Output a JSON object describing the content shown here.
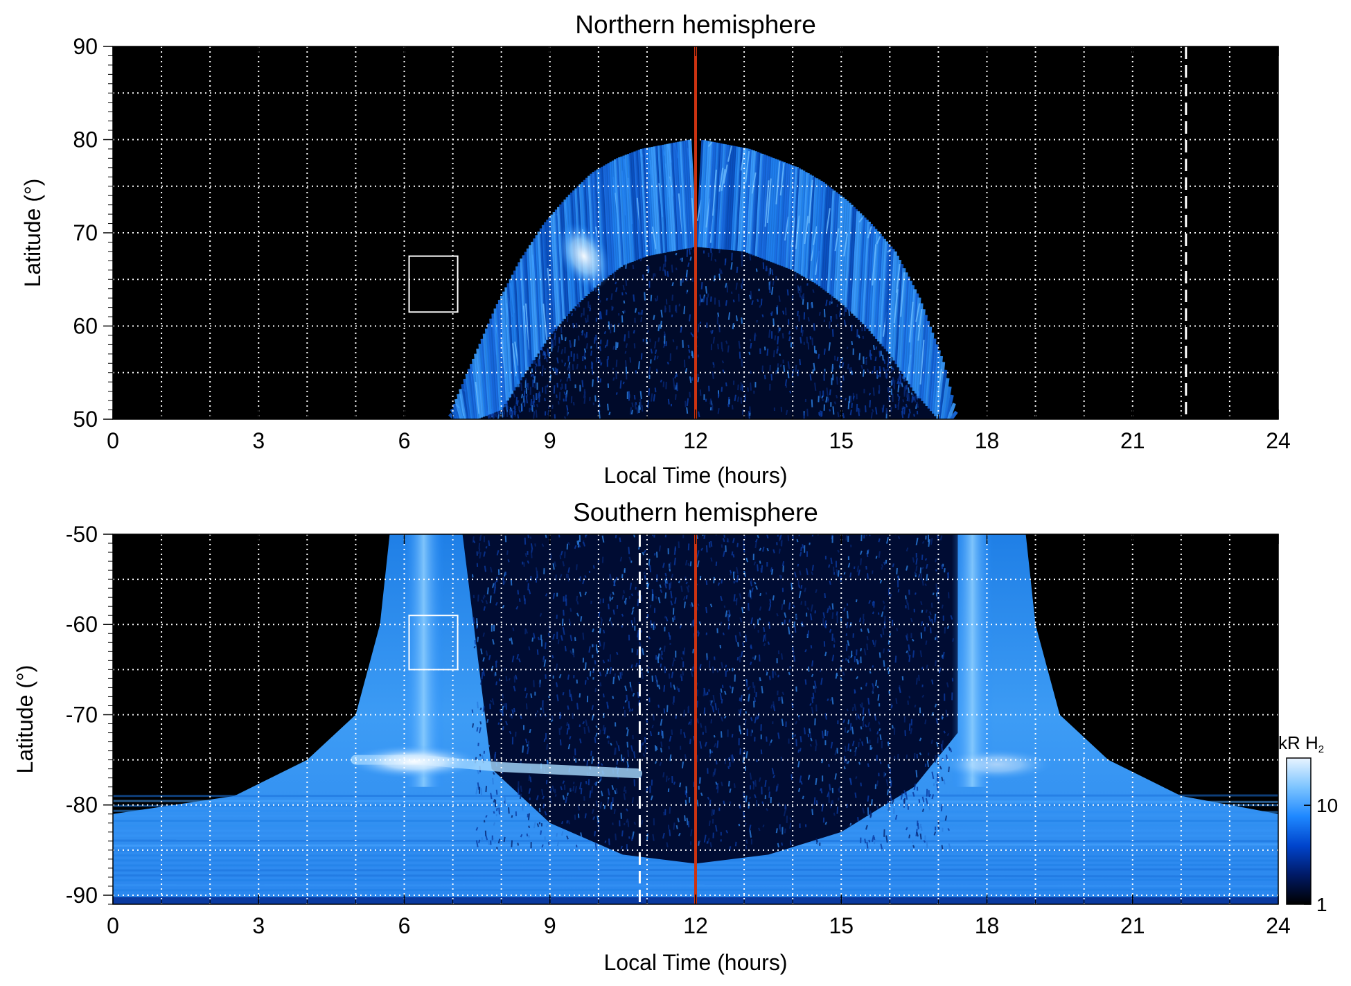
{
  "chart_data": [
    {
      "type": "heatmap",
      "title": "Northern hemisphere",
      "xlabel": "Local Time (hours)",
      "ylabel": "Latitude (°)",
      "xlim": [
        0,
        24
      ],
      "ylim": [
        50,
        90
      ],
      "x_ticks": [
        0,
        3,
        6,
        9,
        12,
        15,
        18,
        21,
        24
      ],
      "x_tick_labels": [
        "0",
        "3",
        "6",
        "9",
        "12",
        "15",
        "18",
        "21",
        "24"
      ],
      "y_ticks": [
        50,
        60,
        70,
        80,
        90
      ],
      "y_tick_labels": [
        "50",
        "60",
        "70",
        "80",
        "90"
      ],
      "grid": true,
      "grid_x_step_hours": 1,
      "grid_y_step_deg": 5,
      "background_color": "#000000",
      "noon_line": {
        "x": 12,
        "color": "#cc3311"
      },
      "dashed_line": {
        "x": 22.1,
        "color": "#ffffff"
      },
      "highlight_box": {
        "x": [
          6.1,
          7.1
        ],
        "y": [
          61.5,
          67.5
        ],
        "color": "#ffffff"
      },
      "auroral_oval": {
        "description_values": "emission band between inner and outer latitude boundaries",
        "points": [
          {
            "lt": 7.0,
            "lat_outer": 50.0,
            "lat_inner": 50.0
          },
          {
            "lt": 7.5,
            "lat_outer": 56.0,
            "lat_inner": 50.0
          },
          {
            "lt": 8.0,
            "lat_outer": 62.0,
            "lat_inner": 51.0
          },
          {
            "lt": 8.5,
            "lat_outer": 67.0,
            "lat_inner": 55.0
          },
          {
            "lt": 9.0,
            "lat_outer": 71.0,
            "lat_inner": 59.0
          },
          {
            "lt": 9.5,
            "lat_outer": 74.0,
            "lat_inner": 62.0
          },
          {
            "lt": 10.0,
            "lat_outer": 76.5,
            "lat_inner": 64.5
          },
          {
            "lt": 10.5,
            "lat_outer": 78.0,
            "lat_inner": 66.5
          },
          {
            "lt": 11.0,
            "lat_outer": 79.0,
            "lat_inner": 67.5
          },
          {
            "lt": 12.0,
            "lat_outer": 80.0,
            "lat_inner": 68.5
          },
          {
            "lt": 13.0,
            "lat_outer": 79.0,
            "lat_inner": 68.0
          },
          {
            "lt": 13.5,
            "lat_outer": 78.0,
            "lat_inner": 67.0
          },
          {
            "lt": 14.0,
            "lat_outer": 77.0,
            "lat_inner": 66.0
          },
          {
            "lt": 14.5,
            "lat_outer": 75.5,
            "lat_inner": 64.5
          },
          {
            "lt": 15.0,
            "lat_outer": 73.5,
            "lat_inner": 62.5
          },
          {
            "lt": 15.5,
            "lat_outer": 71.0,
            "lat_inner": 60.0
          },
          {
            "lt": 16.0,
            "lat_outer": 68.0,
            "lat_inner": 57.0
          },
          {
            "lt": 16.5,
            "lat_outer": 63.0,
            "lat_inner": 53.0
          },
          {
            "lt": 17.0,
            "lat_outer": 56.0,
            "lat_inner": 50.0
          },
          {
            "lt": 17.3,
            "lat_outer": 50.0,
            "lat_inner": 50.0
          }
        ],
        "hot_spot": {
          "lt": 9.7,
          "lat": 67.5,
          "level": "bright"
        }
      }
    },
    {
      "type": "heatmap",
      "title": "Southern hemisphere",
      "xlabel": "Local Time (hours)",
      "ylabel": "Latitude (°)",
      "xlim": [
        0,
        24
      ],
      "ylim": [
        -91,
        -50
      ],
      "x_ticks": [
        0,
        3,
        6,
        9,
        12,
        15,
        18,
        21,
        24
      ],
      "x_tick_labels": [
        "0",
        "3",
        "6",
        "9",
        "12",
        "15",
        "18",
        "21",
        "24"
      ],
      "y_ticks": [
        -90,
        -80,
        -70,
        -60,
        -50
      ],
      "y_tick_labels": [
        "-90",
        "-80",
        "-70",
        "-60",
        "-50"
      ],
      "grid": true,
      "grid_x_step_hours": 1,
      "grid_y_step_deg": 5,
      "background_color": "#000000",
      "noon_line": {
        "x": 12,
        "color": "#cc3311"
      },
      "dashed_line": {
        "x": 10.85,
        "color": "#ffffff"
      },
      "highlight_box": {
        "x": [
          6.1,
          7.1
        ],
        "y": [
          -65,
          -59
        ],
        "color": "#ffffff"
      },
      "footprint_region": {
        "left_edge": [
          {
            "lt": 5.7,
            "lat": -50
          },
          {
            "lt": 5.5,
            "lat": -60
          },
          {
            "lt": 5.0,
            "lat": -70
          },
          {
            "lt": 4.0,
            "lat": -75
          },
          {
            "lt": 2.5,
            "lat": -79
          },
          {
            "lt": 0.0,
            "lat": -81
          }
        ],
        "right_edge": [
          {
            "lt": 18.8,
            "lat": -50
          },
          {
            "lt": 19.0,
            "lat": -60
          },
          {
            "lt": 19.5,
            "lat": -70
          },
          {
            "lt": 20.5,
            "lat": -75
          },
          {
            "lt": 22.0,
            "lat": -79
          },
          {
            "lt": 24.0,
            "lat": -81
          }
        ],
        "dark_dome_outer": [
          {
            "lt": 7.2,
            "lat": -50
          },
          {
            "lt": 7.8,
            "lat": -76
          },
          {
            "lt": 9.0,
            "lat": -82
          },
          {
            "lt": 10.5,
            "lat": -85.5
          },
          {
            "lt": 12.0,
            "lat": -86.5
          },
          {
            "lt": 13.5,
            "lat": -85.5
          },
          {
            "lt": 15.0,
            "lat": -83
          },
          {
            "lt": 16.5,
            "lat": -78
          },
          {
            "lt": 17.4,
            "lat": -72
          },
          {
            "lt": 17.4,
            "lat": -50
          }
        ],
        "bright_columns": [
          {
            "lt": 6.4,
            "from_lat": -50,
            "to_lat": -78
          },
          {
            "lt": 17.7,
            "from_lat": -50,
            "to_lat": -78
          }
        ],
        "bright_arc": [
          {
            "lt": 5.0,
            "lat": -75
          },
          {
            "lt": 6.3,
            "lat": -75
          },
          {
            "lt": 8.0,
            "lat": -75.8
          },
          {
            "lt": 10.0,
            "lat": -76.3
          },
          {
            "lt": 10.8,
            "lat": -76.5
          }
        ]
      },
      "colorbar": {
        "label_main": "kR H",
        "label_sub": "2",
        "scale": "log",
        "ticks": [
          1,
          10
        ],
        "tick_labels": [
          "1",
          "10"
        ],
        "range": [
          1,
          30
        ],
        "colors": [
          "#000000",
          "#001a66",
          "#0044cc",
          "#1e88ff",
          "#7cc4ff",
          "#e8f4ff"
        ]
      }
    }
  ]
}
